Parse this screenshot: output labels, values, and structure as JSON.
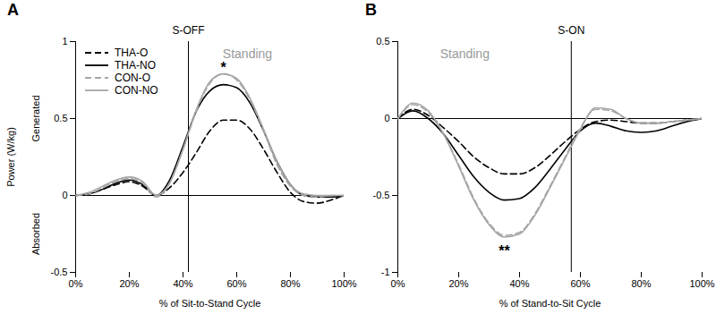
{
  "chart_data": [
    {
      "type": "line",
      "title": "A",
      "x_label": "% of Sit-to-Stand Cycle",
      "y_label": "Power (W/kg)",
      "y_sublabels": [
        "Generated",
        "Absorbed"
      ],
      "x": [
        0,
        5,
        10,
        15,
        20,
        25,
        30,
        35,
        40,
        45,
        50,
        55,
        60,
        65,
        70,
        75,
        80,
        85,
        90,
        95,
        100
      ],
      "series": [
        {
          "name": "THA-O",
          "color": "#000000",
          "line_style": "dashed",
          "values": [
            0,
            0.01,
            0.04,
            0.07,
            0.09,
            0.06,
            0.0,
            0.05,
            0.15,
            0.28,
            0.42,
            0.49,
            0.49,
            0.43,
            0.3,
            0.15,
            0.02,
            -0.04,
            -0.05,
            -0.03,
            0
          ]
        },
        {
          "name": "THA-NO",
          "color": "#000000",
          "line_style": "solid",
          "values": [
            0,
            0.01,
            0.04,
            0.08,
            0.1,
            0.07,
            0.0,
            0.1,
            0.32,
            0.55,
            0.68,
            0.72,
            0.7,
            0.6,
            0.42,
            0.22,
            0.07,
            0.0,
            -0.01,
            -0.01,
            0
          ]
        },
        {
          "name": "CON-O",
          "color": "#a6a6a6",
          "line_style": "dashed",
          "values": [
            0,
            0.01,
            0.05,
            0.09,
            0.11,
            0.08,
            -0.01,
            0.08,
            0.3,
            0.55,
            0.73,
            0.79,
            0.75,
            0.62,
            0.42,
            0.2,
            0.06,
            0.0,
            -0.01,
            0.0,
            0
          ]
        },
        {
          "name": "CON-NO",
          "color": "#a6a6a6",
          "line_style": "solid",
          "values": [
            0,
            0.02,
            0.06,
            0.1,
            0.12,
            0.09,
            0.0,
            0.08,
            0.3,
            0.56,
            0.74,
            0.79,
            0.76,
            0.63,
            0.43,
            0.22,
            0.07,
            0.01,
            0.0,
            0.0,
            0
          ]
        }
      ],
      "xlim": [
        0,
        100
      ],
      "xticks": [
        {
          "value": 0,
          "label": "0%"
        },
        {
          "value": 20,
          "label": "20%"
        },
        {
          "value": 40,
          "label": "40%"
        },
        {
          "value": 60,
          "label": "60%"
        },
        {
          "value": 80,
          "label": "80%"
        },
        {
          "value": 100,
          "label": "100%"
        }
      ],
      "ylim": [
        -0.5,
        1
      ],
      "yticks": [
        -0.5,
        0,
        0.5,
        1
      ],
      "events": [
        {
          "x": 42,
          "label": "S-OFF"
        }
      ],
      "annotations": [
        {
          "text": "Standing",
          "x": 64,
          "y": 0.92,
          "color": "#999999"
        },
        {
          "text": "*",
          "x": 55,
          "y": 0.83,
          "color": "#000000"
        }
      ],
      "legend": "top-left"
    },
    {
      "type": "line",
      "title": "B",
      "x_label": "% of Stand-to-Sit Cycle",
      "x": [
        0,
        5,
        10,
        15,
        20,
        25,
        30,
        35,
        40,
        45,
        50,
        55,
        60,
        65,
        70,
        75,
        80,
        85,
        90,
        95,
        100
      ],
      "series": [
        {
          "name": "THA-O",
          "color": "#000000",
          "line_style": "dashed",
          "values": [
            0,
            0.06,
            0.02,
            -0.06,
            -0.15,
            -0.25,
            -0.32,
            -0.36,
            -0.36,
            -0.32,
            -0.24,
            -0.15,
            -0.07,
            -0.02,
            -0.01,
            -0.02,
            -0.03,
            -0.03,
            -0.02,
            -0.01,
            0
          ]
        },
        {
          "name": "THA-NO",
          "color": "#000000",
          "line_style": "solid",
          "values": [
            0,
            0.05,
            0.0,
            -0.1,
            -0.24,
            -0.38,
            -0.48,
            -0.53,
            -0.52,
            -0.45,
            -0.33,
            -0.2,
            -0.08,
            -0.03,
            -0.05,
            -0.08,
            -0.09,
            -0.08,
            -0.05,
            -0.02,
            0
          ]
        },
        {
          "name": "CON-O",
          "color": "#a6a6a6",
          "line_style": "dashed",
          "values": [
            0,
            0.09,
            0.04,
            -0.1,
            -0.3,
            -0.52,
            -0.68,
            -0.76,
            -0.74,
            -0.62,
            -0.44,
            -0.25,
            -0.06,
            0.06,
            0.05,
            0.0,
            -0.03,
            -0.03,
            -0.02,
            -0.01,
            0
          ]
        },
        {
          "name": "CON-NO",
          "color": "#a6a6a6",
          "line_style": "solid",
          "values": [
            0,
            0.1,
            0.05,
            -0.1,
            -0.31,
            -0.53,
            -0.69,
            -0.77,
            -0.75,
            -0.63,
            -0.45,
            -0.26,
            -0.07,
            0.07,
            0.06,
            0.0,
            -0.03,
            -0.03,
            -0.02,
            -0.01,
            0
          ]
        }
      ],
      "xlim": [
        0,
        100
      ],
      "xticks": [
        {
          "value": 0,
          "label": "0%"
        },
        {
          "value": 20,
          "label": "20%"
        },
        {
          "value": 40,
          "label": "40%"
        },
        {
          "value": 60,
          "label": "60%"
        },
        {
          "value": 80,
          "label": "80%"
        },
        {
          "value": 100,
          "label": "100%"
        }
      ],
      "ylim": [
        -1,
        0.5
      ],
      "yticks": [
        -1,
        -0.5,
        0,
        0.5
      ],
      "events": [
        {
          "x": 57,
          "label": "S-ON"
        }
      ],
      "annotations": [
        {
          "text": "Standing",
          "x": 22,
          "y": 0.42,
          "color": "#999999"
        },
        {
          "text": "**",
          "x": 35,
          "y": -0.86,
          "color": "#000000"
        }
      ]
    }
  ]
}
